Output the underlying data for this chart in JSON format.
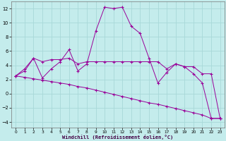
{
  "xlabel": "Windchill (Refroidissement éolien,°C)",
  "background_color": "#c4ecec",
  "grid_color": "#a8d8d8",
  "line_color": "#990099",
  "xlim": [
    -0.5,
    23.5
  ],
  "ylim": [
    -4.8,
    13.0
  ],
  "xticks": [
    0,
    1,
    2,
    3,
    4,
    5,
    6,
    7,
    8,
    9,
    10,
    11,
    12,
    13,
    14,
    15,
    16,
    17,
    18,
    19,
    20,
    21,
    22,
    23
  ],
  "yticks": [
    -4,
    -2,
    0,
    2,
    4,
    6,
    8,
    10,
    12
  ],
  "line1_y": [
    2.5,
    3.2,
    5.0,
    2.2,
    3.5,
    4.5,
    6.2,
    3.2,
    4.2,
    8.8,
    12.2,
    12.0,
    12.2,
    9.5,
    8.5,
    5.0,
    1.5,
    3.0,
    4.2,
    3.8,
    2.8,
    1.5,
    -3.5,
    -3.5
  ],
  "line2_y": [
    2.5,
    3.5,
    5.0,
    4.5,
    4.8,
    4.8,
    5.0,
    4.2,
    4.5,
    4.5,
    4.5,
    4.5,
    4.5,
    4.5,
    4.5,
    4.5,
    4.5,
    3.5,
    4.2,
    3.8,
    3.8,
    2.8,
    2.8,
    -3.5
  ],
  "line3_y": [
    2.5,
    2.3,
    2.1,
    1.9,
    1.7,
    1.5,
    1.3,
    1.0,
    0.8,
    0.5,
    0.2,
    -0.1,
    -0.4,
    -0.7,
    -1.0,
    -1.3,
    -1.5,
    -1.8,
    -2.1,
    -2.4,
    -2.7,
    -3.0,
    -3.5,
    -3.5
  ]
}
